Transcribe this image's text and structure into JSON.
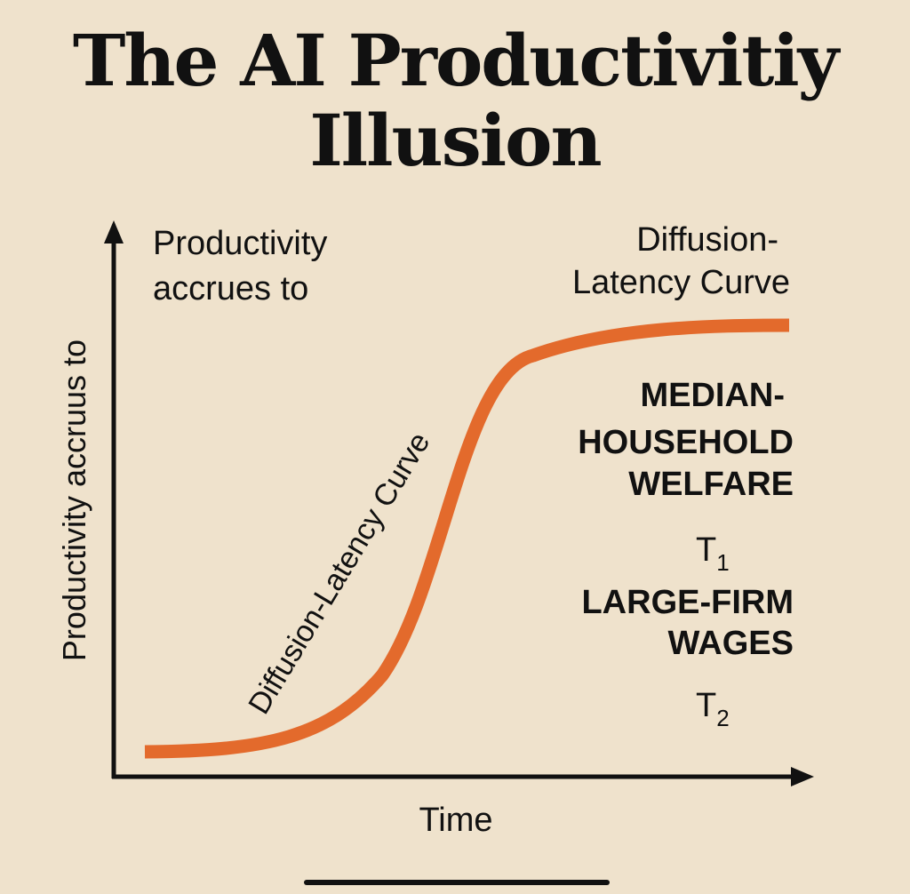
{
  "title_line1": "The AI Productivitiy",
  "title_line2": "Illusion",
  "chart_data": {
    "type": "line",
    "ylabel": "Productivity accruus to",
    "xlabel": "Time",
    "corner_label": [
      "Productivity",
      "accrues to"
    ],
    "curve_title": [
      "Diffusion-",
      "Latency Curve"
    ],
    "curve_label": "Diffusion-Latency Curve",
    "side_labels": [
      "MEDIAN-",
      "HOUSEHOLD",
      "WELFARE",
      "T",
      "LARGE-FIRM",
      "WAGES",
      "T"
    ],
    "subscripts": [
      "1",
      "2"
    ],
    "curve_color": "#e36a2c",
    "axis_color": "#111111",
    "background": "#efe2cc"
  }
}
